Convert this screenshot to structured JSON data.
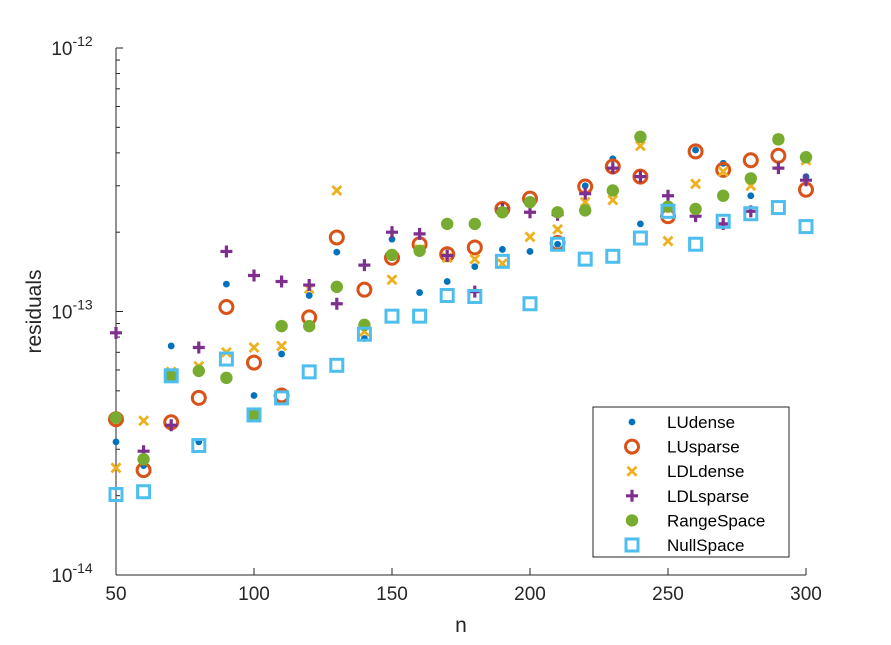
{
  "chart_data": {
    "type": "scatter",
    "title": "",
    "xlabel": "n",
    "ylabel": "residuals",
    "xlim": [
      50,
      300
    ],
    "ylim": [
      1e-14,
      1e-12
    ],
    "yscale": "log",
    "grid": false,
    "legend_position": "bottom-right",
    "x_ticks": [
      50,
      100,
      150,
      200,
      250,
      300
    ],
    "x_tick_labels": [
      "50",
      "100",
      "150",
      "200",
      "250",
      "300"
    ],
    "y_ticks": [
      1e-14,
      1e-13,
      1e-12
    ],
    "y_tick_labels": [
      {
        "base": "10",
        "exp": "-14"
      },
      {
        "base": "10",
        "exp": "-13"
      },
      {
        "base": "10",
        "exp": "-12"
      }
    ],
    "x": [
      50,
      60,
      70,
      80,
      90,
      100,
      110,
      120,
      130,
      140,
      150,
      160,
      170,
      180,
      190,
      200,
      210,
      220,
      230,
      240,
      250,
      260,
      270,
      280,
      290,
      300
    ],
    "series": [
      {
        "name": "LUdense",
        "marker": "dot",
        "color": "#0072bd",
        "values": [
          3.2e-14,
          2.6e-14,
          7.4e-14,
          3.2e-14,
          1.27e-13,
          4.8e-14,
          6.9e-14,
          1.15e-13,
          1.68e-13,
          7.9e-14,
          1.88e-13,
          1.18e-13,
          1.3e-13,
          1.48e-13,
          1.72e-13,
          1.69e-13,
          1.8e-13,
          3e-13,
          3.8e-13,
          2.15e-13,
          2.45e-13,
          4.1e-13,
          3.65e-13,
          2.75e-13,
          4.6e-13,
          3.25e-13
        ]
      },
      {
        "name": "LUsparse",
        "marker": "circle",
        "color": "#d95319",
        "values": [
          3.9e-14,
          2.5e-14,
          3.8e-14,
          4.7e-14,
          1.04e-13,
          6.4e-14,
          4.8e-14,
          9.5e-14,
          1.91e-13,
          1.21e-13,
          1.6e-13,
          1.8e-13,
          1.65e-13,
          1.75e-13,
          2.45e-13,
          2.68e-13,
          1.82e-13,
          2.98e-13,
          3.55e-13,
          3.25e-13,
          2.3e-13,
          4.05e-13,
          3.45e-13,
          3.75e-13,
          3.9e-13,
          2.9e-13
        ]
      },
      {
        "name": "LDLdense",
        "marker": "x",
        "color": "#edb120",
        "values": [
          2.55e-14,
          3.85e-14,
          5.9e-14,
          6.2e-14,
          7e-14,
          7.3e-14,
          7.4e-14,
          1.22e-13,
          2.88e-13,
          8.4e-14,
          1.32e-13,
          1.72e-13,
          1.6e-13,
          1.58e-13,
          1.52e-13,
          1.92e-13,
          2.05e-13,
          2.6e-13,
          2.65e-13,
          4.25e-13,
          1.85e-13,
          3.05e-13,
          3.4e-13,
          3e-13,
          4.5e-13,
          3.75e-13
        ]
      },
      {
        "name": "LDLsparse",
        "marker": "plus",
        "color": "#7e2f8e",
        "values": [
          8.3e-14,
          2.95e-14,
          3.7e-14,
          7.3e-14,
          1.69e-13,
          1.37e-13,
          1.3e-13,
          1.26e-13,
          1.07e-13,
          1.5e-13,
          2e-13,
          1.97e-13,
          1.63e-13,
          1.19e-13,
          2.45e-13,
          2.38e-13,
          2.33e-13,
          2.8e-13,
          3.5e-13,
          3.25e-13,
          2.75e-13,
          2.3e-13,
          2.15e-13,
          2.4e-13,
          3.5e-13,
          3.15e-13
        ]
      },
      {
        "name": "RangeSpace",
        "marker": "filled-circle",
        "color": "#77ac30",
        "values": [
          3.95e-14,
          2.75e-14,
          5.7e-14,
          5.95e-14,
          5.6e-14,
          4.05e-14,
          8.8e-14,
          8.8e-14,
          1.24e-13,
          8.9e-14,
          1.64e-13,
          1.7e-13,
          2.15e-13,
          2.15e-13,
          2.38e-13,
          2.6e-13,
          2.38e-13,
          2.42e-13,
          2.88e-13,
          4.6e-13,
          2.5e-13,
          2.45e-13,
          2.75e-13,
          3.2e-13,
          4.5e-13,
          3.85e-13
        ]
      },
      {
        "name": "NullSpace",
        "marker": "square",
        "color": "#4dbeee",
        "values": [
          2.02e-14,
          2.07e-14,
          5.7e-14,
          3.1e-14,
          6.6e-14,
          4.05e-14,
          4.7e-14,
          5.9e-14,
          6.25e-14,
          8.2e-14,
          9.6e-14,
          9.6e-14,
          1.15e-13,
          1.14e-13,
          1.55e-13,
          1.07e-13,
          1.8e-13,
          1.58e-13,
          1.62e-13,
          1.9e-13,
          2.4e-13,
          1.8e-13,
          2.2e-13,
          2.35e-13,
          2.48e-13,
          2.1e-13
        ]
      }
    ]
  }
}
